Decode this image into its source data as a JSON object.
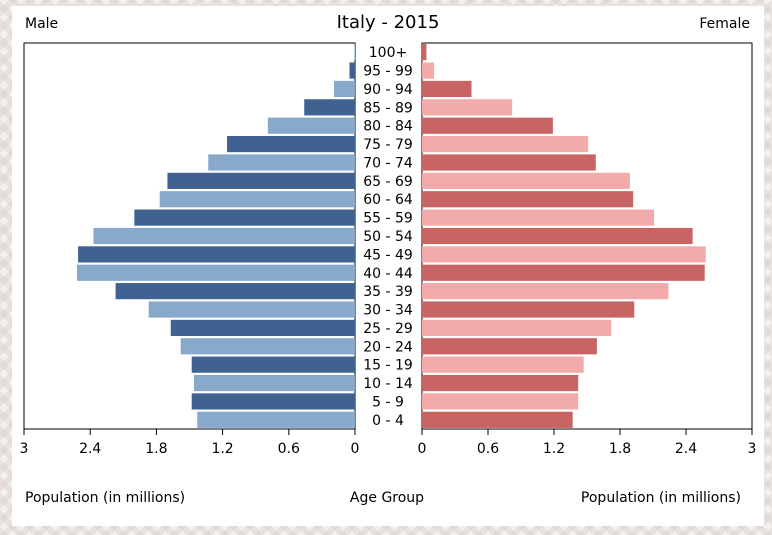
{
  "chart_data": {
    "type": "bar",
    "title": "Italy - 2015",
    "left_label": "Male",
    "right_label": "Female",
    "center_label": "Age Group",
    "xlabel_left": "Population (in millions)",
    "xlabel_right": "Population (in millions)",
    "xlim": [
      0,
      3
    ],
    "x_ticks": [
      "3",
      "2.4",
      "1.8",
      "1.2",
      "0.6",
      "0",
      "0",
      "0.6",
      "1.2",
      "1.8",
      "2.4",
      "3"
    ],
    "categories": [
      "100+",
      "95 - 99",
      "90 - 94",
      "85 - 89",
      "80 - 84",
      "75 - 79",
      "70 - 74",
      "65 - 69",
      "60 - 64",
      "55 - 59",
      "50 - 54",
      "45 - 49",
      "40 - 44",
      "35 - 39",
      "30 - 34",
      "25 - 29",
      "20 - 24",
      "15 - 19",
      "10 - 14",
      "5 - 9",
      "0 - 4"
    ],
    "series": [
      {
        "name": "Male",
        "side": "left",
        "colors": [
          "#3f6290",
          "#88a8cc"
        ],
        "values": [
          0.005,
          0.05,
          0.19,
          0.46,
          0.79,
          1.16,
          1.33,
          1.7,
          1.77,
          2.0,
          2.37,
          2.51,
          2.52,
          2.17,
          1.87,
          1.67,
          1.58,
          1.48,
          1.46,
          1.48,
          1.43
        ]
      },
      {
        "name": "Female",
        "side": "right",
        "colors": [
          "#c86464",
          "#f2aaaa"
        ],
        "values": [
          0.04,
          0.11,
          0.45,
          0.82,
          1.19,
          1.51,
          1.58,
          1.89,
          1.92,
          2.11,
          2.46,
          2.58,
          2.57,
          2.24,
          1.93,
          1.72,
          1.59,
          1.47,
          1.42,
          1.42,
          1.37
        ]
      }
    ],
    "grid": false
  }
}
